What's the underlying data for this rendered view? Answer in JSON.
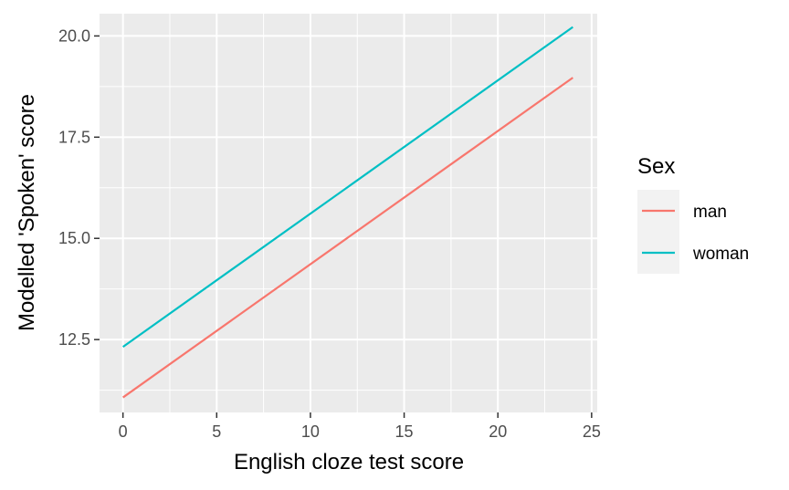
{
  "chart_data": {
    "type": "line",
    "title": "",
    "xlabel": "English cloze test score",
    "ylabel": "Modelled 'Spoken' score",
    "xlim": [
      -1.25,
      25.3
    ],
    "ylim": [
      10.7,
      20.55
    ],
    "x_ticks": [
      0,
      5,
      10,
      15,
      20,
      25
    ],
    "x_tick_labels": [
      "0",
      "5",
      "10",
      "15",
      "20",
      "25"
    ],
    "y_ticks": [
      12.5,
      15.0,
      17.5,
      20.0
    ],
    "y_tick_labels": [
      "12.5",
      "15.0",
      "17.5",
      "20.0"
    ],
    "grid": true,
    "legend": {
      "title": "Sex",
      "position": "right"
    },
    "series": [
      {
        "name": "man",
        "color": "#F8766D",
        "x": [
          0,
          24
        ],
        "y": [
          11.07,
          18.97
        ]
      },
      {
        "name": "woman",
        "color": "#00BFC4",
        "x": [
          0,
          24
        ],
        "y": [
          12.32,
          20.22
        ]
      }
    ]
  }
}
